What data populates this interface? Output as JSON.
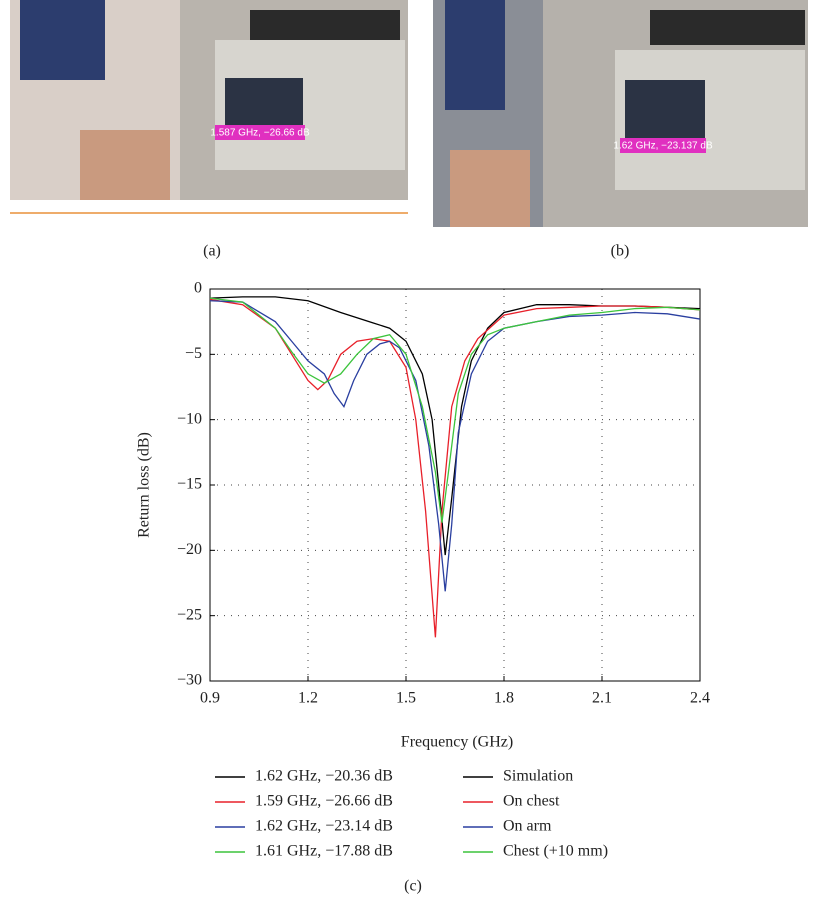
{
  "figure": {
    "panel_labels": [
      "(a)",
      "(b)",
      "(c)"
    ],
    "photo_a_label": "1.587 GHz, −26.66 dB",
    "photo_b_label": "1.62 GHz, −23.137 dB"
  },
  "chart_data": {
    "type": "line",
    "x_label": "Frequency (GHz)",
    "y_label": "Return loss (dB)",
    "xlim": [
      0.9,
      2.4
    ],
    "xticks": [
      0.9,
      1.2,
      1.5,
      1.8,
      2.1,
      2.4
    ],
    "ylim": [
      -30,
      0
    ],
    "yticks": [
      0,
      {
        "value": -5,
        "label": "−5"
      },
      {
        "value": -10,
        "label": "−10"
      },
      {
        "value": -15,
        "label": "−15"
      },
      {
        "value": -20,
        "label": "−20"
      },
      {
        "value": -25,
        "label": "−25"
      },
      {
        "value": -30,
        "label": "−30"
      }
    ],
    "grid": true,
    "series": [
      {
        "name": "Simulation",
        "annotation": "1.62 GHz, −20.36 dB",
        "color": "#000000",
        "x": [
          0.9,
          1.0,
          1.1,
          1.2,
          1.3,
          1.4,
          1.45,
          1.5,
          1.55,
          1.58,
          1.6,
          1.62,
          1.64,
          1.67,
          1.7,
          1.75,
          1.8,
          1.9,
          2.0,
          2.1,
          2.2,
          2.3,
          2.4
        ],
        "values": [
          -0.7,
          -0.6,
          -0.6,
          -0.9,
          -1.8,
          -2.6,
          -3.0,
          -4.0,
          -6.5,
          -10,
          -15,
          -20.36,
          -16,
          -9,
          -5.5,
          -3.0,
          -1.8,
          -1.2,
          -1.2,
          -1.3,
          -1.3,
          -1.4,
          -1.5
        ]
      },
      {
        "name": "On chest",
        "annotation": "1.59 GHz, −26.66 dB",
        "color": "#e8202a",
        "x": [
          0.9,
          1.0,
          1.1,
          1.15,
          1.2,
          1.23,
          1.26,
          1.3,
          1.35,
          1.4,
          1.45,
          1.5,
          1.53,
          1.56,
          1.59,
          1.61,
          1.64,
          1.68,
          1.72,
          1.8,
          1.9,
          2.0,
          2.1,
          2.2,
          2.3,
          2.4
        ],
        "values": [
          -0.8,
          -1.2,
          -3.0,
          -5.0,
          -7.0,
          -7.7,
          -7.0,
          -5.0,
          -4.0,
          -3.8,
          -4.0,
          -6.0,
          -10,
          -17,
          -26.66,
          -17,
          -9,
          -5.5,
          -3.8,
          -2.0,
          -1.5,
          -1.4,
          -1.3,
          -1.3,
          -1.4,
          -1.6
        ]
      },
      {
        "name": "On arm",
        "annotation": "1.62 GHz, −23.14 dB",
        "color": "#2a3fa0",
        "x": [
          0.9,
          1.0,
          1.1,
          1.15,
          1.2,
          1.25,
          1.28,
          1.31,
          1.34,
          1.38,
          1.42,
          1.45,
          1.48,
          1.53,
          1.57,
          1.6,
          1.62,
          1.64,
          1.66,
          1.7,
          1.75,
          1.8,
          1.9,
          2.0,
          2.1,
          2.2,
          2.3,
          2.4
        ],
        "values": [
          -0.9,
          -1.0,
          -2.5,
          -4.0,
          -5.5,
          -6.5,
          -8.0,
          -9.0,
          -7.0,
          -5.0,
          -4.2,
          -4.0,
          -4.5,
          -7,
          -12,
          -18,
          -23.14,
          -18,
          -11,
          -6.5,
          -4.0,
          -3.0,
          -2.5,
          -2.1,
          -2.0,
          -1.8,
          -1.9,
          -2.3
        ]
      },
      {
        "name": "Chest (+10 mm)",
        "annotation": "1.61 GHz, −17.88 dB",
        "color": "#3cc43c",
        "x": [
          0.9,
          1.0,
          1.1,
          1.15,
          1.2,
          1.25,
          1.3,
          1.35,
          1.4,
          1.45,
          1.5,
          1.55,
          1.59,
          1.61,
          1.63,
          1.66,
          1.7,
          1.75,
          1.8,
          1.9,
          2.0,
          2.1,
          2.2,
          2.3,
          2.4
        ],
        "values": [
          -0.7,
          -1.0,
          -3.0,
          -4.8,
          -6.5,
          -7.2,
          -6.5,
          -5.0,
          -3.8,
          -3.5,
          -5.0,
          -9,
          -14,
          -17.88,
          -14,
          -8,
          -5,
          -3.5,
          -3.0,
          -2.5,
          -2.0,
          -1.8,
          -1.5,
          -1.4,
          -1.6
        ]
      }
    ]
  }
}
